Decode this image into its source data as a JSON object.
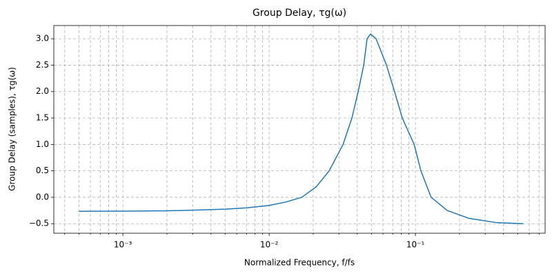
{
  "chart_data": {
    "type": "line",
    "title": "Group Delay, τg(ω)",
    "x_label": "Normalized Frequency, f/fs",
    "y_label": "Group Delay (samples), τg(ω)",
    "x_scale": "log",
    "grid": true,
    "xlim": [
      0.000337,
      0.77
    ],
    "ylim": [
      -0.68,
      3.25
    ],
    "xticks": [
      {
        "value": 0.001,
        "label": "10⁻³"
      },
      {
        "value": 0.01,
        "label": "10⁻²"
      },
      {
        "value": 0.1,
        "label": "10⁻¹"
      }
    ],
    "xminorticks": [
      0.0004,
      0.0005,
      0.0006,
      0.0007,
      0.0008,
      0.0009,
      0.002,
      0.003,
      0.004,
      0.005,
      0.006,
      0.007,
      0.008,
      0.009,
      0.02,
      0.03,
      0.04,
      0.05,
      0.06,
      0.07,
      0.08,
      0.09,
      0.2,
      0.3,
      0.4,
      0.5,
      0.6,
      0.7
    ],
    "yticks": [
      {
        "value": -0.5,
        "label": "−0.5"
      },
      {
        "value": 0,
        "label": "0.0"
      },
      0.5,
      {
        "value": 1,
        "label": "1.0"
      },
      1.5,
      {
        "value": 2,
        "label": "2.0"
      },
      2.5,
      {
        "value": 3,
        "label": "3.0"
      }
    ],
    "x": [
      0.0005,
      0.001,
      0.002,
      0.003,
      0.005,
      0.007,
      0.01,
      0.013,
      0.0167,
      0.021,
      0.0257,
      0.032,
      0.0368,
      0.0406,
      0.0443,
      0.0467,
      0.0493,
      0.0538,
      0.0634,
      0.072,
      0.0813,
      0.098,
      0.109,
      0.128,
      0.165,
      0.233,
      0.36,
      0.545
    ],
    "series": [
      {
        "name": "group delay",
        "color": "#1f77b4",
        "values": [
          -0.265,
          -0.262,
          -0.255,
          -0.245,
          -0.225,
          -0.2,
          -0.155,
          -0.09,
          0.0,
          0.2,
          0.5,
          1.0,
          1.5,
          2.0,
          2.5,
          3.0,
          3.09,
          3.0,
          2.5,
          2.0,
          1.5,
          1.0,
          0.5,
          0.0,
          -0.25,
          -0.4,
          -0.48,
          -0.5
        ]
      }
    ]
  }
}
